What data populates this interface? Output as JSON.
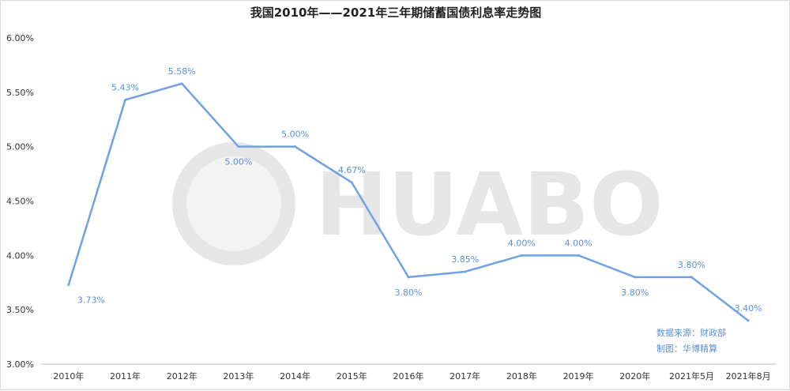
{
  "chart_data": {
    "type": "line",
    "title": "我国2010年——2021年三年期储蓄国债利息率走势图",
    "categories": [
      "2010年",
      "2011年",
      "2012年",
      "2013年",
      "2014年",
      "2015年",
      "2016年",
      "2017年",
      "2018年",
      "2019年",
      "2020年",
      "2021年5月",
      "2021年8月"
    ],
    "series": [
      {
        "values": [
          3.73,
          5.43,
          5.58,
          5.0,
          5.0,
          4.67,
          3.8,
          3.85,
          4.0,
          4.0,
          3.8,
          3.8,
          3.4
        ],
        "labels": [
          "3.73%",
          "5.43%",
          "5.58%",
          "5.00%",
          "5.00%",
          "4.67%",
          "3.80%",
          "3.85%",
          "4.00%",
          "4.00%",
          "3.80%",
          "3.80%",
          "3.40%"
        ],
        "color": "#6fa0e8"
      }
    ],
    "ylim": [
      3.0,
      6.0
    ],
    "yticks": [
      "3.00%",
      "3.50%",
      "4.00%",
      "4.50%",
      "5.00%",
      "5.50%",
      "6.00%"
    ],
    "ytick_values": [
      3.0,
      3.5,
      4.0,
      4.5,
      5.0,
      5.5,
      6.0
    ],
    "grid": false,
    "annotations": [
      "数据来源：财政部",
      "制图：华博精算"
    ]
  },
  "watermark": "HUABO"
}
